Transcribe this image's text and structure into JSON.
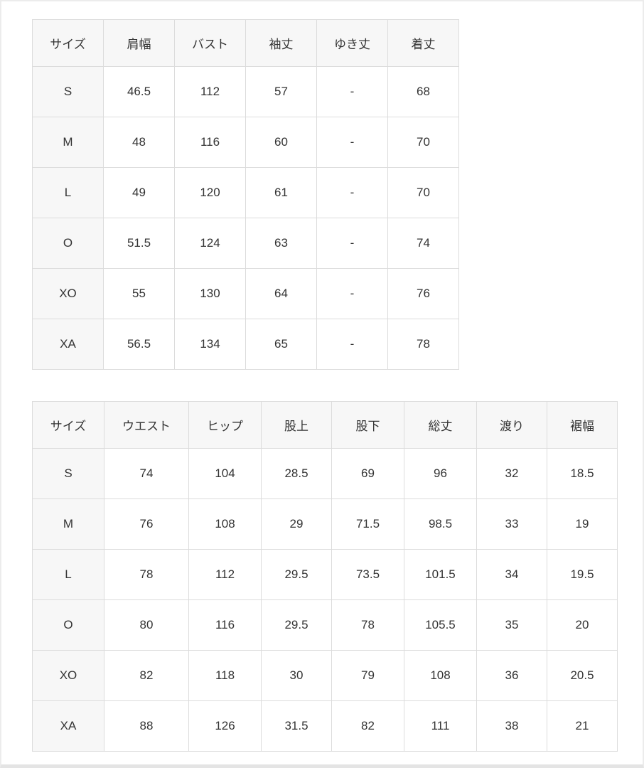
{
  "colors": {
    "page_background": "#ffffff",
    "table_border": "#dcdcdc",
    "header_background": "#f7f7f7",
    "row_label_background": "#f7f7f7",
    "cell_background": "#ffffff",
    "text": "#333333"
  },
  "tables": [
    {
      "name": "tops-size-table",
      "columns": [
        "サイズ",
        "肩幅",
        "バスト",
        "袖丈",
        "ゆき丈",
        "着丈"
      ],
      "rows": [
        [
          "S",
          "46.5",
          "112",
          "57",
          "-",
          "68"
        ],
        [
          "M",
          "48",
          "116",
          "60",
          "-",
          "70"
        ],
        [
          "L",
          "49",
          "120",
          "61",
          "-",
          "70"
        ],
        [
          "O",
          "51.5",
          "124",
          "63",
          "-",
          "74"
        ],
        [
          "XO",
          "55",
          "130",
          "64",
          "-",
          "76"
        ],
        [
          "XA",
          "56.5",
          "134",
          "65",
          "-",
          "78"
        ]
      ]
    },
    {
      "name": "bottoms-size-table",
      "columns": [
        "サイズ",
        "ウエスト",
        "ヒップ",
        "股上",
        "股下",
        "総丈",
        "渡り",
        "裾幅"
      ],
      "rows": [
        [
          "S",
          "74",
          "104",
          "28.5",
          "69",
          "96",
          "32",
          "18.5"
        ],
        [
          "M",
          "76",
          "108",
          "29",
          "71.5",
          "98.5",
          "33",
          "19"
        ],
        [
          "L",
          "78",
          "112",
          "29.5",
          "73.5",
          "101.5",
          "34",
          "19.5"
        ],
        [
          "O",
          "80",
          "116",
          "29.5",
          "78",
          "105.5",
          "35",
          "20"
        ],
        [
          "XO",
          "82",
          "118",
          "30",
          "79",
          "108",
          "36",
          "20.5"
        ],
        [
          "XA",
          "88",
          "126",
          "31.5",
          "82",
          "111",
          "38",
          "21"
        ]
      ]
    }
  ],
  "chart_data": [
    {
      "type": "table",
      "title": "",
      "columns": [
        "サイズ",
        "肩幅",
        "バスト",
        "袖丈",
        "ゆき丈",
        "着丈"
      ],
      "rows": [
        [
          "S",
          "46.5",
          "112",
          "57",
          "-",
          "68"
        ],
        [
          "M",
          "48",
          "116",
          "60",
          "-",
          "70"
        ],
        [
          "L",
          "49",
          "120",
          "61",
          "-",
          "70"
        ],
        [
          "O",
          "51.5",
          "124",
          "63",
          "-",
          "74"
        ],
        [
          "XO",
          "55",
          "130",
          "64",
          "-",
          "76"
        ],
        [
          "XA",
          "56.5",
          "134",
          "65",
          "-",
          "78"
        ]
      ]
    },
    {
      "type": "table",
      "title": "",
      "columns": [
        "サイズ",
        "ウエスト",
        "ヒップ",
        "股上",
        "股下",
        "総丈",
        "渡り",
        "裾幅"
      ],
      "rows": [
        [
          "S",
          "74",
          "104",
          "28.5",
          "69",
          "96",
          "32",
          "18.5"
        ],
        [
          "M",
          "76",
          "108",
          "29",
          "71.5",
          "98.5",
          "33",
          "19"
        ],
        [
          "L",
          "78",
          "112",
          "29.5",
          "73.5",
          "101.5",
          "34",
          "19.5"
        ],
        [
          "O",
          "80",
          "116",
          "29.5",
          "78",
          "105.5",
          "35",
          "20"
        ],
        [
          "XO",
          "82",
          "118",
          "30",
          "79",
          "108",
          "36",
          "20.5"
        ],
        [
          "XA",
          "88",
          "126",
          "31.5",
          "82",
          "111",
          "38",
          "21"
        ]
      ]
    }
  ]
}
